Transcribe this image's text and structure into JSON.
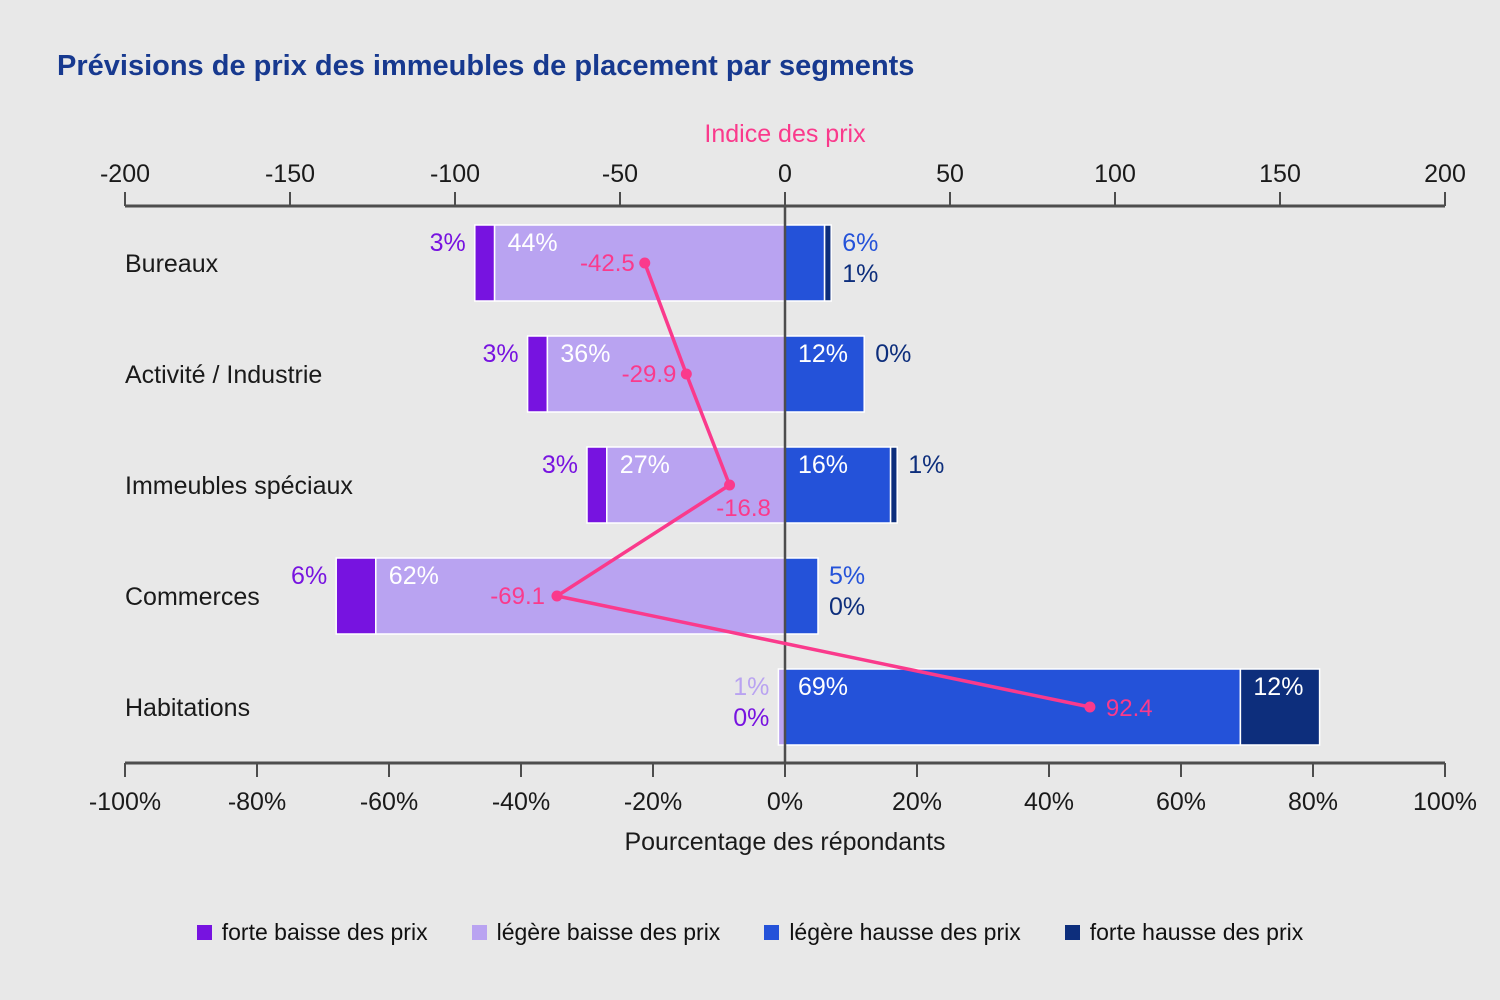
{
  "title": "Prévisions de prix des immeubles de placement par segments",
  "colors": {
    "background": "#e8e8e8",
    "title": "#17398f",
    "axis": "#4d4d4d",
    "text": "#1a1a1a",
    "inside_label": "#ffffff",
    "index_line": "#fa3a8c"
  },
  "chart_data": {
    "type": "bar",
    "variant": "diverging-stacked-horizontal-with-index-line",
    "title": "Prévisions de prix des immeubles de placement par segments",
    "categories": [
      "Bureaux",
      "Activité / Industrie",
      "Immeubles spéciaux",
      "Commerces",
      "Habitations"
    ],
    "series": [
      {
        "name": "forte baisse des prix",
        "color": "#7713e0",
        "side": "negative",
        "values": [
          3,
          3,
          3,
          6,
          0
        ],
        "labels": [
          "3%",
          "3%",
          "3%",
          "6%",
          "0%"
        ]
      },
      {
        "name": "légère baisse des prix",
        "color": "#b9a3f1",
        "side": "negative",
        "values": [
          44,
          36,
          27,
          62,
          1
        ],
        "labels": [
          "44%",
          "36%",
          "27%",
          "62%",
          "1%"
        ]
      },
      {
        "name": "légère hausse des prix",
        "color": "#2452d9",
        "side": "positive",
        "values": [
          6,
          12,
          16,
          5,
          69
        ],
        "labels": [
          "6%",
          "12%",
          "16%",
          "5%",
          "69%"
        ]
      },
      {
        "name": "forte hausse des prix",
        "color": "#0d2e7c",
        "side": "positive",
        "values": [
          1,
          0,
          1,
          0,
          12
        ],
        "labels": [
          "1%",
          "0%",
          "1%",
          "0%",
          "12%"
        ]
      }
    ],
    "line": {
      "name": "Indice des prix",
      "color": "#fa3a8c",
      "values": [
        -42.5,
        -29.9,
        -16.8,
        -69.1,
        92.4
      ],
      "labels": [
        "-42.5",
        "-29.9",
        "-16.8",
        "-69.1",
        "92.4"
      ]
    },
    "top_axis": {
      "title": "Indice des prix",
      "range": [
        -200,
        200
      ],
      "tick_values": [
        -200,
        -150,
        -100,
        -50,
        0,
        50,
        100,
        150,
        200
      ],
      "tick_labels": [
        "-200",
        "-150",
        "-100",
        "-50",
        "0",
        "50",
        "100",
        "150",
        "200"
      ]
    },
    "bottom_axis": {
      "title": "Pourcentage des répondants",
      "range": [
        -100,
        100
      ],
      "tick_values": [
        -100,
        -80,
        -60,
        -40,
        -20,
        0,
        20,
        40,
        60,
        80,
        100
      ],
      "tick_labels": [
        "-100%",
        "-80%",
        "-60%",
        "-40%",
        "-20%",
        "0%",
        "20%",
        "40%",
        "60%",
        "80%",
        "100%"
      ]
    },
    "legend": [
      {
        "label": "forte baisse des prix",
        "color": "#7713e0"
      },
      {
        "label": "légère baisse des prix",
        "color": "#b9a3f1"
      },
      {
        "label": "légère hausse des prix",
        "color": "#2452d9"
      },
      {
        "label": "forte hausse des prix",
        "color": "#0d2e7c"
      }
    ]
  }
}
